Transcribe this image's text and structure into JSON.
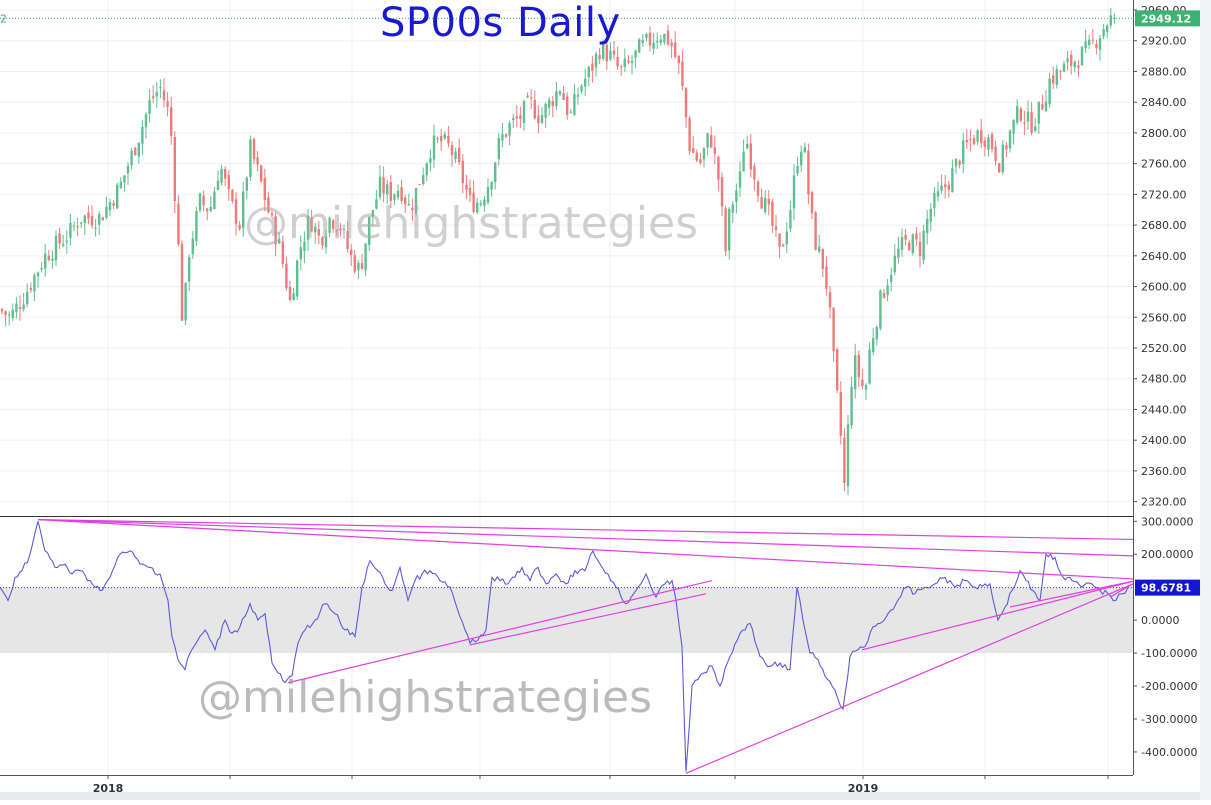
{
  "title": "SP00s Daily",
  "watermark": "@milehighstrategies",
  "colors": {
    "up": "#26a69a",
    "down": "#ef5350",
    "indicator": "#5b5bdb",
    "trendline": "#e040e0",
    "band": "#e6e6e6",
    "price_tag": "#3cb371",
    "indicator_tag": "#1515d4",
    "title": "#1919d2"
  },
  "chart_data": [
    {
      "type": "candlestick",
      "title": "SP00s Daily",
      "x_labels": [
        "2018",
        "2019"
      ],
      "ylim": [
        2300,
        2960
      ],
      "y_ticks": [
        "2320.00",
        "2360.00",
        "2400.00",
        "2440.00",
        "2480.00",
        "2520.00",
        "2560.00",
        "2600.00",
        "2640.00",
        "2680.00",
        "2720.00",
        "2760.00",
        "2800.00",
        "2840.00",
        "2880.00",
        "2920.00",
        "2960.00"
      ],
      "last_price_label": "2949.12",
      "last_price": 2949.12,
      "left_edge_label": "2",
      "grid": true,
      "path_anchors": [
        [
          0,
          2570
        ],
        [
          10,
          2560
        ],
        [
          25,
          2590
        ],
        [
          45,
          2640
        ],
        [
          70,
          2670
        ],
        [
          80,
          2690
        ],
        [
          100,
          2690
        ],
        [
          120,
          2730
        ],
        [
          140,
          2800
        ],
        [
          150,
          2840
        ],
        [
          160,
          2860
        ],
        [
          170,
          2820
        ],
        [
          178,
          2660
        ],
        [
          183,
          2540
        ],
        [
          188,
          2640
        ],
        [
          200,
          2710
        ],
        [
          210,
          2700
        ],
        [
          220,
          2760
        ],
        [
          230,
          2710
        ],
        [
          240,
          2680
        ],
        [
          250,
          2780
        ],
        [
          260,
          2740
        ],
        [
          270,
          2690
        ],
        [
          280,
          2650
        ],
        [
          290,
          2580
        ],
        [
          300,
          2650
        ],
        [
          310,
          2690
        ],
        [
          320,
          2660
        ],
        [
          330,
          2690
        ],
        [
          340,
          2680
        ],
        [
          350,
          2640
        ],
        [
          360,
          2620
        ],
        [
          370,
          2690
        ],
        [
          380,
          2730
        ],
        [
          390,
          2720
        ],
        [
          400,
          2730
        ],
        [
          410,
          2700
        ],
        [
          420,
          2740
        ],
        [
          430,
          2780
        ],
        [
          440,
          2790
        ],
        [
          450,
          2780
        ],
        [
          460,
          2750
        ],
        [
          470,
          2710
        ],
        [
          480,
          2710
        ],
        [
          490,
          2740
        ],
        [
          500,
          2790
        ],
        [
          510,
          2810
        ],
        [
          520,
          2820
        ],
        [
          530,
          2840
        ],
        [
          540,
          2820
        ],
        [
          550,
          2840
        ],
        [
          560,
          2860
        ],
        [
          570,
          2820
        ],
        [
          580,
          2860
        ],
        [
          590,
          2880
        ],
        [
          600,
          2910
        ],
        [
          610,
          2900
        ],
        [
          620,
          2880
        ],
        [
          630,
          2890
        ],
        [
          640,
          2910
        ],
        [
          650,
          2920
        ],
        [
          660,
          2930
        ],
        [
          670,
          2920
        ],
        [
          680,
          2880
        ],
        [
          690,
          2780
        ],
        [
          700,
          2760
        ],
        [
          710,
          2800
        ],
        [
          720,
          2730
        ],
        [
          725,
          2640
        ],
        [
          730,
          2700
        ],
        [
          740,
          2740
        ],
        [
          745,
          2800
        ],
        [
          750,
          2770
        ],
        [
          760,
          2720
        ],
        [
          770,
          2690
        ],
        [
          780,
          2640
        ],
        [
          790,
          2700
        ],
        [
          800,
          2790
        ],
        [
          805,
          2770
        ],
        [
          810,
          2700
        ],
        [
          815,
          2660
        ],
        [
          820,
          2640
        ],
        [
          825,
          2620
        ],
        [
          830,
          2560
        ],
        [
          835,
          2480
        ],
        [
          840,
          2420
        ],
        [
          845,
          2330
        ],
        [
          850,
          2470
        ],
        [
          855,
          2500
        ],
        [
          860,
          2480
        ],
        [
          865,
          2460
        ],
        [
          870,
          2520
        ],
        [
          880,
          2580
        ],
        [
          890,
          2620
        ],
        [
          900,
          2650
        ],
        [
          910,
          2660
        ],
        [
          920,
          2650
        ],
        [
          930,
          2700
        ],
        [
          940,
          2720
        ],
        [
          950,
          2740
        ],
        [
          960,
          2770
        ],
        [
          970,
          2790
        ],
        [
          980,
          2800
        ],
        [
          990,
          2790
        ],
        [
          1000,
          2760
        ],
        [
          1010,
          2800
        ],
        [
          1020,
          2830
        ],
        [
          1030,
          2810
        ],
        [
          1040,
          2830
        ],
        [
          1050,
          2870
        ],
        [
          1060,
          2880
        ],
        [
          1070,
          2890
        ],
        [
          1080,
          2900
        ],
        [
          1090,
          2910
        ],
        [
          1100,
          2930
        ],
        [
          1110,
          2950
        ],
        [
          1115,
          2940
        ]
      ]
    },
    {
      "type": "line",
      "ylim": [
        -470,
        310
      ],
      "y_ticks": [
        "300.0000",
        "200.0000",
        "0.0000",
        "-100.0000",
        "-200.0000",
        "-300.0000",
        "-400.0000"
      ],
      "last_value_label": "98.6781",
      "last_value": 98.6781,
      "band": [
        -100,
        100
      ],
      "reference_line": 98.6781,
      "path_anchors": [
        [
          0,
          100
        ],
        [
          8,
          60
        ],
        [
          15,
          130
        ],
        [
          22,
          150
        ],
        [
          30,
          200
        ],
        [
          38,
          300
        ],
        [
          45,
          210
        ],
        [
          55,
          160
        ],
        [
          65,
          170
        ],
        [
          72,
          140
        ],
        [
          80,
          150
        ],
        [
          90,
          120
        ],
        [
          100,
          90
        ],
        [
          110,
          130
        ],
        [
          120,
          200
        ],
        [
          130,
          210
        ],
        [
          140,
          170
        ],
        [
          150,
          160
        ],
        [
          160,
          140
        ],
        [
          168,
          60
        ],
        [
          172,
          -50
        ],
        [
          178,
          -120
        ],
        [
          185,
          -150
        ],
        [
          190,
          -100
        ],
        [
          198,
          -60
        ],
        [
          205,
          -30
        ],
        [
          215,
          -90
        ],
        [
          225,
          0
        ],
        [
          232,
          -40
        ],
        [
          240,
          -20
        ],
        [
          250,
          50
        ],
        [
          258,
          0
        ],
        [
          265,
          20
        ],
        [
          272,
          -130
        ],
        [
          278,
          -160
        ],
        [
          285,
          -190
        ],
        [
          292,
          -170
        ],
        [
          298,
          -70
        ],
        [
          305,
          -30
        ],
        [
          315,
          0
        ],
        [
          325,
          50
        ],
        [
          335,
          20
        ],
        [
          345,
          -30
        ],
        [
          355,
          -50
        ],
        [
          362,
          100
        ],
        [
          370,
          180
        ],
        [
          378,
          150
        ],
        [
          385,
          110
        ],
        [
          392,
          90
        ],
        [
          400,
          160
        ],
        [
          408,
          60
        ],
        [
          415,
          120
        ],
        [
          422,
          140
        ],
        [
          430,
          150
        ],
        [
          440,
          120
        ],
        [
          450,
          100
        ],
        [
          460,
          10
        ],
        [
          470,
          -70
        ],
        [
          478,
          -60
        ],
        [
          486,
          -30
        ],
        [
          492,
          130
        ],
        [
          500,
          120
        ],
        [
          508,
          110
        ],
        [
          515,
          130
        ],
        [
          522,
          160
        ],
        [
          530,
          120
        ],
        [
          538,
          160
        ],
        [
          546,
          110
        ],
        [
          556,
          140
        ],
        [
          566,
          110
        ],
        [
          575,
          150
        ],
        [
          585,
          150
        ],
        [
          593,
          210
        ],
        [
          600,
          170
        ],
        [
          608,
          140
        ],
        [
          616,
          100
        ],
        [
          626,
          50
        ],
        [
          636,
          90
        ],
        [
          646,
          140
        ],
        [
          656,
          70
        ],
        [
          665,
          110
        ],
        [
          672,
          120
        ],
        [
          676,
          60
        ],
        [
          682,
          -80
        ],
        [
          686,
          -460
        ],
        [
          692,
          -200
        ],
        [
          698,
          -180
        ],
        [
          704,
          -160
        ],
        [
          712,
          -140
        ],
        [
          720,
          -200
        ],
        [
          730,
          -110
        ],
        [
          740,
          -40
        ],
        [
          750,
          -10
        ],
        [
          760,
          -110
        ],
        [
          770,
          -140
        ],
        [
          780,
          -130
        ],
        [
          790,
          -150
        ],
        [
          797,
          100
        ],
        [
          803,
          0
        ],
        [
          810,
          -100
        ],
        [
          818,
          -120
        ],
        [
          825,
          -170
        ],
        [
          832,
          -200
        ],
        [
          838,
          -240
        ],
        [
          843,
          -270
        ],
        [
          850,
          -110
        ],
        [
          858,
          -90
        ],
        [
          865,
          -80
        ],
        [
          873,
          -20
        ],
        [
          880,
          -10
        ],
        [
          888,
          20
        ],
        [
          896,
          50
        ],
        [
          906,
          100
        ],
        [
          915,
          80
        ],
        [
          925,
          100
        ],
        [
          935,
          110
        ],
        [
          945,
          130
        ],
        [
          955,
          100
        ],
        [
          965,
          120
        ],
        [
          975,
          100
        ],
        [
          985,
          110
        ],
        [
          990,
          110
        ],
        [
          998,
          0
        ],
        [
          1005,
          40
        ],
        [
          1012,
          90
        ],
        [
          1020,
          150
        ],
        [
          1026,
          120
        ],
        [
          1033,
          90
        ],
        [
          1040,
          60
        ],
        [
          1046,
          200
        ],
        [
          1055,
          190
        ],
        [
          1063,
          130
        ],
        [
          1072,
          120
        ],
        [
          1082,
          100
        ],
        [
          1092,
          110
        ],
        [
          1100,
          90
        ],
        [
          1108,
          80
        ],
        [
          1116,
          60
        ],
        [
          1122,
          80
        ],
        [
          1128,
          98.68
        ]
      ],
      "trendlines": [
        [
          [
            38,
            305
          ],
          [
            1133,
            245
          ]
        ],
        [
          [
            38,
            305
          ],
          [
            1133,
            195
          ]
        ],
        [
          [
            38,
            305
          ],
          [
            1133,
            125
          ]
        ],
        [
          [
            288,
            -190
          ],
          [
            712,
            120
          ]
        ],
        [
          [
            470,
            -75
          ],
          [
            706,
            80
          ]
        ],
        [
          [
            686,
            -465
          ],
          [
            1133,
            110
          ]
        ],
        [
          [
            862,
            -90
          ],
          [
            1133,
            118
          ]
        ],
        [
          [
            1010,
            40
          ],
          [
            1133,
            118
          ]
        ],
        [
          [
            1110,
            70
          ],
          [
            1133,
            110
          ]
        ]
      ]
    }
  ]
}
